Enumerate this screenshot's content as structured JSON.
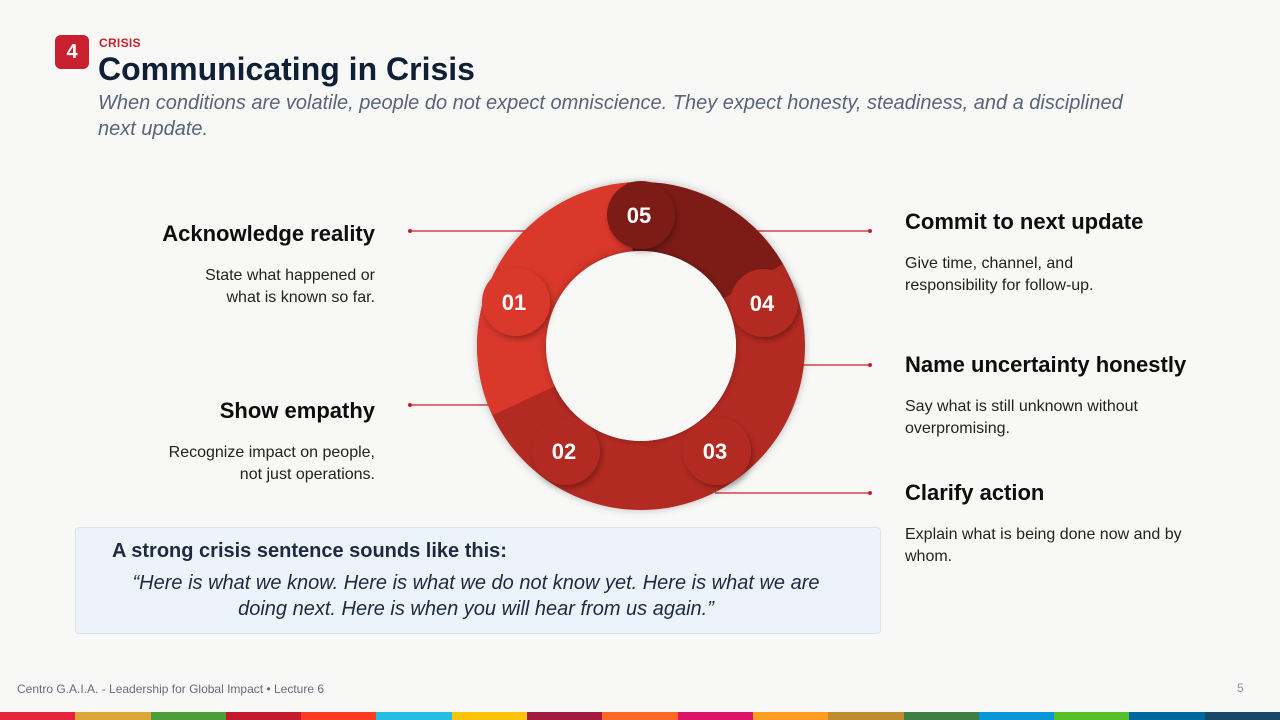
{
  "header": {
    "badge_number": "4",
    "kicker": "CRISIS",
    "title": "Communicating in Crisis",
    "subtitle": "When conditions are volatile, people do not expect omniscience. They expect honesty, steadiness, and a disciplined next update."
  },
  "steps": [
    {
      "number": "01",
      "title": "Acknowledge reality",
      "description": "State what happened or what is known so far."
    },
    {
      "number": "02",
      "title": "Show empathy",
      "description": "Recognize impact on people, not just operations."
    },
    {
      "number": "03",
      "title": "Clarify action",
      "description": "Explain what is being done now and by whom."
    },
    {
      "number": "04",
      "title": "Name uncertainty honestly",
      "description": "Say what is still unknown without overpromising."
    },
    {
      "number": "05",
      "title": "Commit to next update",
      "description": "Give time, channel, and responsibility for follow-up."
    }
  ],
  "callout": {
    "heading": "A strong crisis sentence sounds like this:",
    "quote": "“Here is what we know. Here is what we do not know yet. Here is what we are doing next. Here is when you will hear from us again.”"
  },
  "footer": {
    "text": "Centro G.A.I.A. - Leadership for Global Impact • Lecture 6",
    "page_number": "5"
  },
  "colors": {
    "accent": "#c8202e",
    "ring_dark": "#7d1a14",
    "ring_mid": "#b32a21",
    "ring_light": "#d9392c",
    "strip": [
      "#e5243b",
      "#dda63a",
      "#4c9f38",
      "#c5192d",
      "#ff3a21",
      "#26bde2",
      "#fcc30b",
      "#a21942",
      "#fd6925",
      "#dd1367",
      "#fd9d24",
      "#bf8b2e",
      "#3f7e44",
      "#0a97d9",
      "#56c02b",
      "#00689d",
      "#19486a"
    ]
  }
}
